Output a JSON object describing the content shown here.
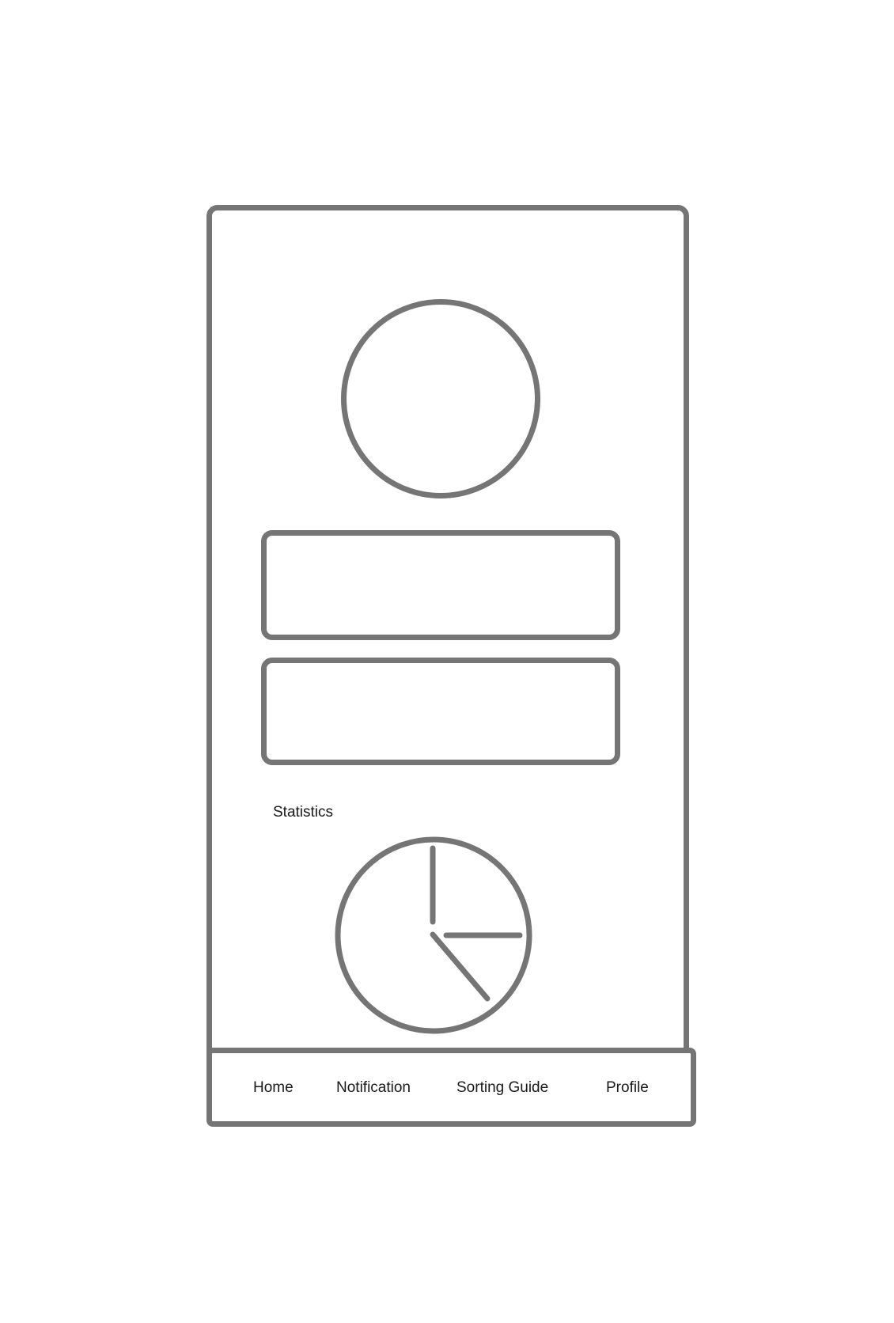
{
  "statistics": {
    "label": "Statistics"
  },
  "tabbar": {
    "items": [
      {
        "label": "Home"
      },
      {
        "label": "Notification"
      },
      {
        "label": "Sorting Guide"
      },
      {
        "label": "Profile"
      }
    ]
  },
  "colors": {
    "stroke": "#757575",
    "text": "#1a1a1a",
    "background": "#ffffff"
  },
  "icons": {
    "avatar": "avatar-placeholder-icon",
    "statistics_chart": "pie-chart-icon"
  }
}
